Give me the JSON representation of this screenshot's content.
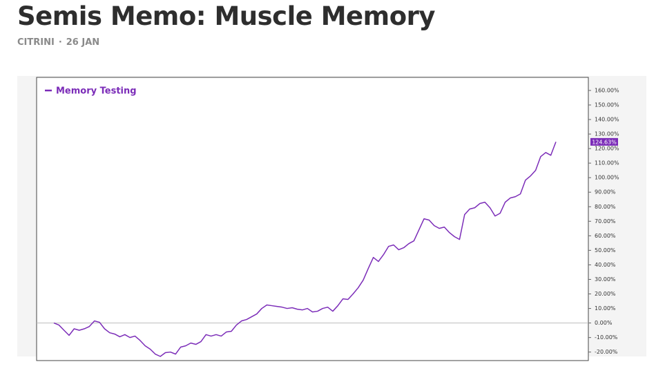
{
  "header": {
    "title": "Semis Memo: Muscle Memory",
    "author": "CITRINI",
    "date": "26 JAN"
  },
  "chart_data": {
    "type": "line",
    "legend_position": "top-left",
    "ylim": [
      -23,
      169
    ],
    "yticks": [
      {
        "value": -20,
        "label": "-20.00%"
      },
      {
        "value": -10,
        "label": "-10.00%"
      },
      {
        "value": 0,
        "label": "0.00%"
      },
      {
        "value": 10,
        "label": "10.00%"
      },
      {
        "value": 20,
        "label": "20.00%"
      },
      {
        "value": 30,
        "label": "30.00%"
      },
      {
        "value": 40,
        "label": "40.00%"
      },
      {
        "value": 50,
        "label": "50.00%"
      },
      {
        "value": 60,
        "label": "60.00%"
      },
      {
        "value": 70,
        "label": "70.00%"
      },
      {
        "value": 80,
        "label": "80.00%"
      },
      {
        "value": 90,
        "label": "90.00%"
      },
      {
        "value": 100,
        "label": "100.00%"
      },
      {
        "value": 110,
        "label": "110.00%"
      },
      {
        "value": 120,
        "label": "120.00%"
      },
      {
        "value": 130,
        "label": "130.00%"
      },
      {
        "value": 140,
        "label": "140.00%"
      },
      {
        "value": 150,
        "label": "150.00%"
      },
      {
        "value": 160,
        "label": "160.00%"
      }
    ],
    "zero_line": true,
    "series": [
      {
        "name": "Memory Testing",
        "color": "#7b2cb8",
        "values": [
          0,
          -1.4,
          -5,
          -8.5,
          -4,
          -5,
          -4,
          -2.4,
          1.4,
          0.5,
          -4,
          -6.7,
          -7.6,
          -9.5,
          -8,
          -10,
          -9,
          -12,
          -15.7,
          -18,
          -21.4,
          -23,
          -20.4,
          -20,
          -21.4,
          -16.6,
          -15.7,
          -13.8,
          -14.7,
          -12.8,
          -8,
          -9,
          -8,
          -9,
          -6.2,
          -5.7,
          -1.4,
          1.4,
          2.4,
          4.3,
          6.2,
          10,
          12.4,
          11.9,
          11.4,
          10.9,
          10,
          10.5,
          9.5,
          9,
          10,
          7.6,
          8.1,
          10,
          10.9,
          8.1,
          11.9,
          16.6,
          16.2,
          20,
          24.2,
          29.5,
          37.5,
          45.1,
          42.3,
          47,
          52.7,
          53.7,
          50.4,
          51.8,
          54.6,
          56.5,
          64.1,
          71.7,
          70.8,
          67,
          65.1,
          66,
          62.2,
          59.4,
          57.5,
          74.6,
          78.4,
          79.3,
          82.2,
          83.1,
          79.3,
          73.6,
          75.5,
          83.1,
          86,
          86.9,
          88.8,
          98.3,
          101.2,
          105,
          114.5,
          117.3,
          115.4,
          124.63
        ],
        "value_labels": [
          null,
          null,
          null,
          null,
          null,
          null,
          null,
          null,
          null,
          null,
          null,
          null,
          null,
          null,
          null,
          null,
          null,
          null,
          null,
          null,
          null,
          null,
          null,
          null,
          null,
          null,
          null,
          null,
          null,
          null,
          null,
          null,
          null,
          null,
          null,
          null,
          null,
          null,
          null,
          null,
          null,
          null,
          null,
          null,
          null,
          null,
          null,
          null,
          null,
          null,
          null,
          null,
          null,
          null,
          null,
          null,
          null,
          null,
          null,
          null,
          null,
          null,
          null,
          null,
          null,
          null,
          null,
          null,
          null,
          null,
          null,
          null,
          null,
          null,
          null,
          null,
          null,
          null,
          null,
          null,
          null,
          null,
          null,
          null,
          null,
          null,
          null,
          null,
          null,
          null,
          null,
          null,
          null,
          null,
          null,
          null,
          null,
          null,
          null,
          "124.63%"
        ]
      }
    ]
  }
}
